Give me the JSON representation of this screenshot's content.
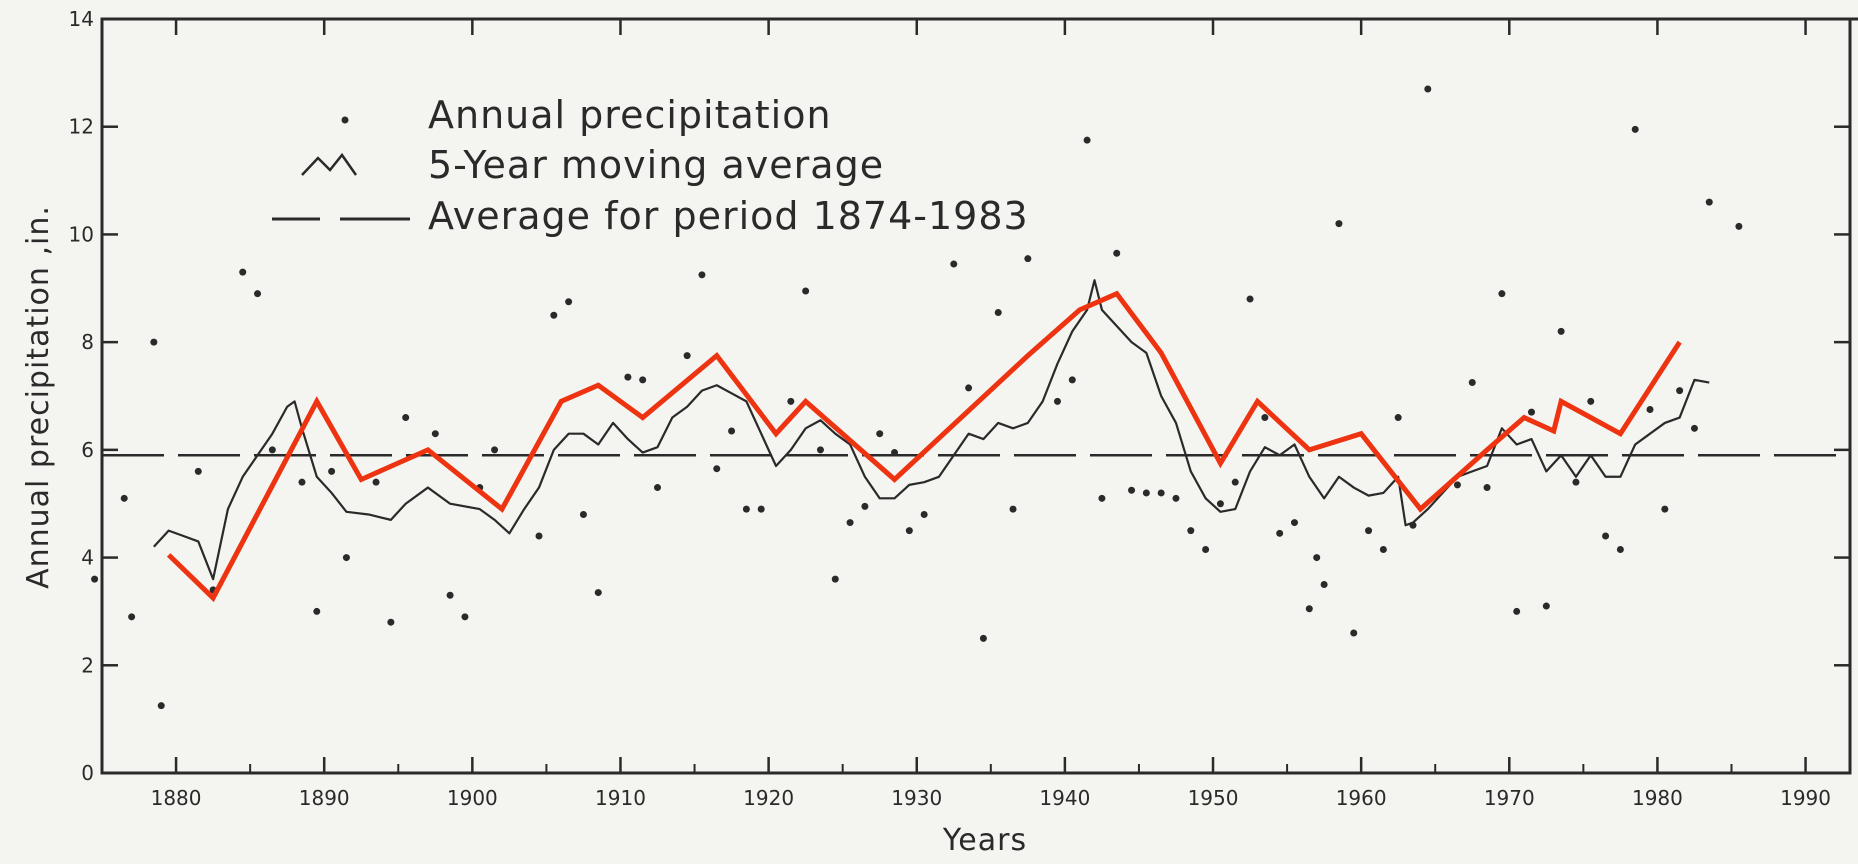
{
  "chart_data": {
    "type": "line",
    "xlabel": "Years",
    "ylabel": "Annual precipitation ,in.",
    "xlim": [
      1875,
      1993
    ],
    "ylim": [
      0,
      14
    ],
    "x_ticks": [
      1880,
      1890,
      1900,
      1910,
      1920,
      1930,
      1940,
      1950,
      1960,
      1970,
      1980,
      1990
    ],
    "y_ticks": [
      0,
      2,
      4,
      6,
      8,
      10,
      12,
      14
    ],
    "grid": false,
    "legend_position": "top-left",
    "legend": [
      {
        "label": "Annual  precipitation",
        "style": "dot"
      },
      {
        "label": "5-Year moving average",
        "style": "thin-line"
      },
      {
        "label": "Average for period 1874-1983",
        "style": "dashed"
      }
    ],
    "colors": {
      "ink": "#2a2a2a",
      "overlay": "#ee3311",
      "background": "#f4f4f0"
    },
    "average_line": {
      "value": 5.9
    },
    "annual_points": [
      {
        "x": 1874.5,
        "y": 3.6
      },
      {
        "x": 1876.5,
        "y": 5.1
      },
      {
        "x": 1877.0,
        "y": 2.9
      },
      {
        "x": 1878.5,
        "y": 8.0
      },
      {
        "x": 1879.0,
        "y": 1.25
      },
      {
        "x": 1881.5,
        "y": 5.6
      },
      {
        "x": 1882.5,
        "y": 3.4
      },
      {
        "x": 1884.5,
        "y": 9.3
      },
      {
        "x": 1885.5,
        "y": 8.9
      },
      {
        "x": 1886.5,
        "y": 6.0
      },
      {
        "x": 1888.5,
        "y": 5.4
      },
      {
        "x": 1889.5,
        "y": 3.0
      },
      {
        "x": 1890.5,
        "y": 5.6
      },
      {
        "x": 1891.5,
        "y": 4.0
      },
      {
        "x": 1893.5,
        "y": 5.4
      },
      {
        "x": 1894.5,
        "y": 2.8
      },
      {
        "x": 1895.5,
        "y": 6.6
      },
      {
        "x": 1897.5,
        "y": 6.3
      },
      {
        "x": 1898.5,
        "y": 3.3
      },
      {
        "x": 1899.5,
        "y": 2.9
      },
      {
        "x": 1900.5,
        "y": 5.3
      },
      {
        "x": 1901.5,
        "y": 6.0
      },
      {
        "x": 1904.5,
        "y": 4.4
      },
      {
        "x": 1905.5,
        "y": 8.5
      },
      {
        "x": 1906.5,
        "y": 8.75
      },
      {
        "x": 1907.5,
        "y": 4.8
      },
      {
        "x": 1908.5,
        "y": 3.35
      },
      {
        "x": 1910.5,
        "y": 7.35
      },
      {
        "x": 1911.5,
        "y": 7.3
      },
      {
        "x": 1912.5,
        "y": 5.3
      },
      {
        "x": 1914.5,
        "y": 7.75
      },
      {
        "x": 1915.5,
        "y": 9.25
      },
      {
        "x": 1916.5,
        "y": 5.65
      },
      {
        "x": 1917.5,
        "y": 6.35
      },
      {
        "x": 1918.5,
        "y": 4.9
      },
      {
        "x": 1919.5,
        "y": 4.9
      },
      {
        "x": 1921.5,
        "y": 6.9
      },
      {
        "x": 1922.5,
        "y": 8.95
      },
      {
        "x": 1923.5,
        "y": 6.0
      },
      {
        "x": 1924.5,
        "y": 3.6
      },
      {
        "x": 1925.5,
        "y": 4.65
      },
      {
        "x": 1926.5,
        "y": 4.95
      },
      {
        "x": 1927.5,
        "y": 6.3
      },
      {
        "x": 1928.5,
        "y": 5.95
      },
      {
        "x": 1929.5,
        "y": 4.5
      },
      {
        "x": 1930.5,
        "y": 4.8
      },
      {
        "x": 1932.5,
        "y": 9.45
      },
      {
        "x": 1933.5,
        "y": 7.15
      },
      {
        "x": 1934.5,
        "y": 2.5
      },
      {
        "x": 1935.5,
        "y": 8.55
      },
      {
        "x": 1936.5,
        "y": 4.9
      },
      {
        "x": 1937.5,
        "y": 9.55
      },
      {
        "x": 1939.5,
        "y": 6.9
      },
      {
        "x": 1940.5,
        "y": 7.3
      },
      {
        "x": 1941.5,
        "y": 11.75
      },
      {
        "x": 1942.5,
        "y": 5.1
      },
      {
        "x": 1943.5,
        "y": 9.65
      },
      {
        "x": 1944.5,
        "y": 5.25
      },
      {
        "x": 1945.5,
        "y": 5.2
      },
      {
        "x": 1946.5,
        "y": 5.2
      },
      {
        "x": 1947.5,
        "y": 5.1
      },
      {
        "x": 1948.5,
        "y": 4.5
      },
      {
        "x": 1949.5,
        "y": 4.15
      },
      {
        "x": 1950.5,
        "y": 5.0
      },
      {
        "x": 1951.5,
        "y": 5.4
      },
      {
        "x": 1952.5,
        "y": 8.8
      },
      {
        "x": 1953.5,
        "y": 6.6
      },
      {
        "x": 1954.5,
        "y": 4.45
      },
      {
        "x": 1955.5,
        "y": 4.65
      },
      {
        "x": 1956.5,
        "y": 3.05
      },
      {
        "x": 1957.0,
        "y": 4.0
      },
      {
        "x": 1957.5,
        "y": 3.5
      },
      {
        "x": 1958.5,
        "y": 10.2
      },
      {
        "x": 1959.5,
        "y": 2.6
      },
      {
        "x": 1960.5,
        "y": 4.5
      },
      {
        "x": 1961.5,
        "y": 4.15
      },
      {
        "x": 1962.5,
        "y": 6.6
      },
      {
        "x": 1963.5,
        "y": 4.6
      },
      {
        "x": 1964.5,
        "y": 12.7
      },
      {
        "x": 1966.5,
        "y": 5.35
      },
      {
        "x": 1967.5,
        "y": 7.25
      },
      {
        "x": 1968.5,
        "y": 5.3
      },
      {
        "x": 1969.5,
        "y": 8.9
      },
      {
        "x": 1970.5,
        "y": 3.0
      },
      {
        "x": 1971.5,
        "y": 6.7
      },
      {
        "x": 1972.5,
        "y": 3.1
      },
      {
        "x": 1973.5,
        "y": 8.2
      },
      {
        "x": 1974.5,
        "y": 5.4
      },
      {
        "x": 1975.5,
        "y": 6.9
      },
      {
        "x": 1976.5,
        "y": 4.4
      },
      {
        "x": 1977.5,
        "y": 4.15
      },
      {
        "x": 1978.5,
        "y": 11.95
      },
      {
        "x": 1979.5,
        "y": 6.75
      },
      {
        "x": 1980.5,
        "y": 4.9
      },
      {
        "x": 1981.5,
        "y": 7.1
      },
      {
        "x": 1982.5,
        "y": 6.4
      },
      {
        "x": 1983.5,
        "y": 10.6
      },
      {
        "x": 1985.5,
        "y": 10.15
      }
    ],
    "moving_average": [
      [
        1878.5,
        4.2
      ],
      [
        1879.5,
        4.5
      ],
      [
        1880.5,
        4.4
      ],
      [
        1881.5,
        4.3
      ],
      [
        1882.5,
        3.6
      ],
      [
        1883.5,
        4.9
      ],
      [
        1884.5,
        5.5
      ],
      [
        1885.5,
        5.9
      ],
      [
        1886.5,
        6.3
      ],
      [
        1887.5,
        6.8
      ],
      [
        1888.0,
        6.9
      ],
      [
        1888.5,
        6.4
      ],
      [
        1889.5,
        5.5
      ],
      [
        1890.5,
        5.2
      ],
      [
        1891.5,
        4.85
      ],
      [
        1893.0,
        4.8
      ],
      [
        1894.5,
        4.7
      ],
      [
        1895.5,
        5.0
      ],
      [
        1897.0,
        5.3
      ],
      [
        1898.5,
        5.0
      ],
      [
        1900.5,
        4.9
      ],
      [
        1901.5,
        4.7
      ],
      [
        1902.5,
        4.45
      ],
      [
        1903.5,
        4.9
      ],
      [
        1904.5,
        5.3
      ],
      [
        1905.5,
        6.0
      ],
      [
        1906.5,
        6.3
      ],
      [
        1907.5,
        6.3
      ],
      [
        1908.5,
        6.1
      ],
      [
        1909.5,
        6.5
      ],
      [
        1910.5,
        6.2
      ],
      [
        1911.5,
        5.95
      ],
      [
        1912.5,
        6.05
      ],
      [
        1913.5,
        6.6
      ],
      [
        1914.5,
        6.8
      ],
      [
        1915.5,
        7.1
      ],
      [
        1916.5,
        7.2
      ],
      [
        1917.5,
        7.05
      ],
      [
        1918.5,
        6.9
      ],
      [
        1919.5,
        6.3
      ],
      [
        1920.5,
        5.7
      ],
      [
        1921.5,
        6.0
      ],
      [
        1922.5,
        6.4
      ],
      [
        1923.5,
        6.55
      ],
      [
        1924.5,
        6.3
      ],
      [
        1925.5,
        6.1
      ],
      [
        1926.5,
        5.5
      ],
      [
        1927.5,
        5.1
      ],
      [
        1928.5,
        5.1
      ],
      [
        1929.5,
        5.35
      ],
      [
        1930.5,
        5.4
      ],
      [
        1931.5,
        5.5
      ],
      [
        1932.5,
        5.9
      ],
      [
        1933.5,
        6.3
      ],
      [
        1934.5,
        6.2
      ],
      [
        1935.5,
        6.5
      ],
      [
        1936.5,
        6.4
      ],
      [
        1937.5,
        6.5
      ],
      [
        1938.5,
        6.9
      ],
      [
        1939.5,
        7.6
      ],
      [
        1940.5,
        8.2
      ],
      [
        1941.5,
        8.6
      ],
      [
        1942.0,
        9.15
      ],
      [
        1942.5,
        8.6
      ],
      [
        1943.5,
        8.3
      ],
      [
        1944.5,
        8.0
      ],
      [
        1945.5,
        7.8
      ],
      [
        1946.5,
        7.0
      ],
      [
        1947.5,
        6.5
      ],
      [
        1948.5,
        5.6
      ],
      [
        1949.5,
        5.1
      ],
      [
        1950.5,
        4.85
      ],
      [
        1951.5,
        4.9
      ],
      [
        1952.5,
        5.6
      ],
      [
        1953.5,
        6.05
      ],
      [
        1954.5,
        5.9
      ],
      [
        1955.5,
        6.1
      ],
      [
        1956.5,
        5.5
      ],
      [
        1957.5,
        5.1
      ],
      [
        1958.5,
        5.5
      ],
      [
        1959.5,
        5.3
      ],
      [
        1960.5,
        5.15
      ],
      [
        1961.5,
        5.2
      ],
      [
        1962.5,
        5.5
      ],
      [
        1963.0,
        4.6
      ],
      [
        1963.5,
        4.65
      ],
      [
        1964.5,
        4.9
      ],
      [
        1965.5,
        5.2
      ],
      [
        1966.5,
        5.5
      ],
      [
        1967.5,
        5.6
      ],
      [
        1968.5,
        5.7
      ],
      [
        1969.5,
        6.4
      ],
      [
        1970.5,
        6.1
      ],
      [
        1971.5,
        6.2
      ],
      [
        1972.5,
        5.6
      ],
      [
        1973.5,
        5.9
      ],
      [
        1974.5,
        5.5
      ],
      [
        1975.5,
        5.9
      ],
      [
        1976.5,
        5.5
      ],
      [
        1977.5,
        5.5
      ],
      [
        1978.5,
        6.1
      ],
      [
        1979.5,
        6.3
      ],
      [
        1980.5,
        6.5
      ],
      [
        1981.5,
        6.6
      ],
      [
        1982.5,
        7.3
      ],
      [
        1983.5,
        7.25
      ]
    ],
    "overlay_line": [
      [
        1879.5,
        4.05
      ],
      [
        1882.5,
        3.25
      ],
      [
        1889.5,
        6.9
      ],
      [
        1892.5,
        5.45
      ],
      [
        1897.0,
        6.0
      ],
      [
        1902.0,
        4.9
      ],
      [
        1906.0,
        6.9
      ],
      [
        1908.5,
        7.2
      ],
      [
        1911.5,
        6.6
      ],
      [
        1916.5,
        7.75
      ],
      [
        1920.5,
        6.3
      ],
      [
        1922.5,
        6.9
      ],
      [
        1928.5,
        5.45
      ],
      [
        1937.5,
        7.75
      ],
      [
        1941.0,
        8.6
      ],
      [
        1943.5,
        8.9
      ],
      [
        1946.5,
        7.8
      ],
      [
        1950.5,
        5.75
      ],
      [
        1953.0,
        6.9
      ],
      [
        1956.5,
        6.0
      ],
      [
        1960.0,
        6.3
      ],
      [
        1964.0,
        4.9
      ],
      [
        1968.5,
        6.0
      ],
      [
        1971.0,
        6.6
      ],
      [
        1973.0,
        6.35
      ],
      [
        1973.5,
        6.9
      ],
      [
        1977.5,
        6.3
      ],
      [
        1981.5,
        8.0
      ]
    ]
  }
}
